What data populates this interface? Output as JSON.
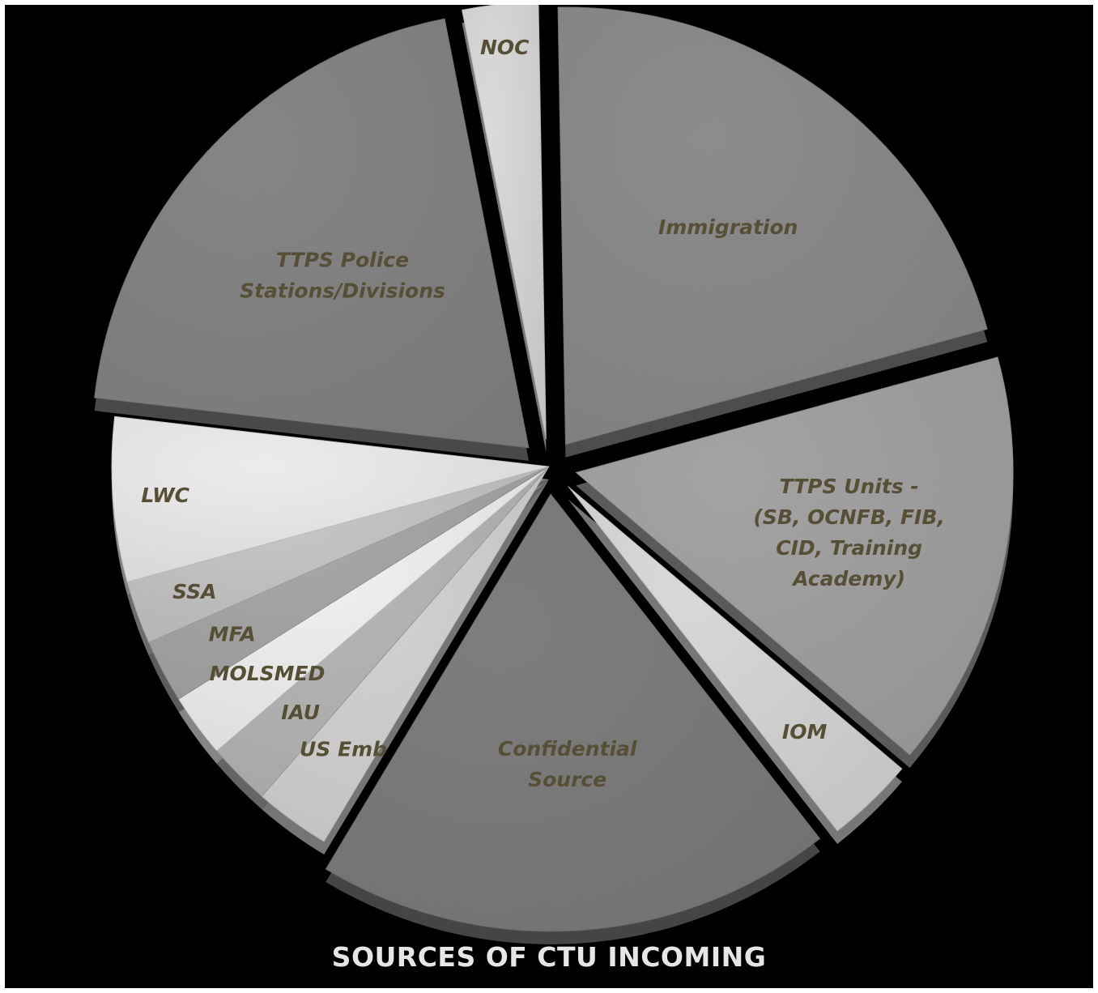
{
  "chart_data": {
    "type": "pie",
    "title": "SOURCES OF CTU INCOMING",
    "style": "3d-exploded",
    "legend": "none",
    "slices": [
      {
        "label": "Immigration",
        "value": 22.5,
        "color": "#8c8c8c",
        "exploded": true
      },
      {
        "label": "TTPS Units -\n(SB, OCNFB, FIB,\nCID, Training\nAcademy)",
        "value": 16.5,
        "color": "#a3a3a3",
        "exploded": true
      },
      {
        "label": "IOM",
        "value": 3.5,
        "color": "#d9d9d9",
        "exploded": true
      },
      {
        "label": "Confidential\nSource",
        "value": 20.5,
        "color": "#7e7e7e",
        "exploded": true
      },
      {
        "label": "US Emb",
        "value": 3.0,
        "color": "#d4d4d4",
        "exploded": false
      },
      {
        "label": "IAU",
        "value": 2.5,
        "color": "#b7b7b7",
        "exploded": false
      },
      {
        "label": "MOLSMED",
        "value": 2.5,
        "color": "#f2f2f2",
        "exploded": false
      },
      {
        "label": "MFA",
        "value": 2.5,
        "color": "#a8a8a8",
        "exploded": false
      },
      {
        "label": "SSA",
        "value": 2.5,
        "color": "#c6c6c6",
        "exploded": false
      },
      {
        "label": "LWC",
        "value": 6.5,
        "color": "#ececec",
        "exploded": false
      },
      {
        "label": "TTPS Police\nStations/Divisions",
        "value": 21.5,
        "color": "#858585",
        "exploded": true
      },
      {
        "label": "NOC",
        "value": 3.0,
        "color": "#dadada",
        "exploded": true
      }
    ]
  }
}
